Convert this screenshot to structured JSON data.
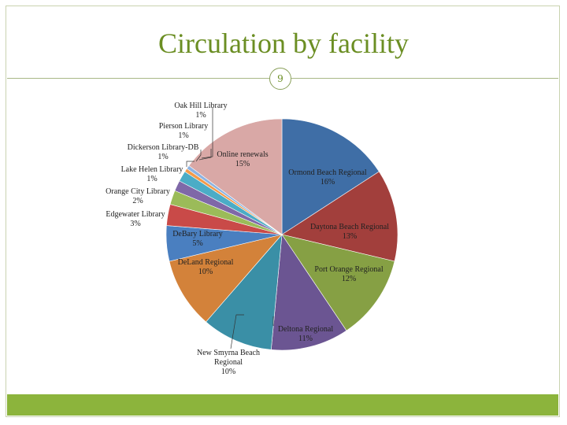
{
  "slide": {
    "title": "Circulation by facility",
    "page_number": "9"
  },
  "colors": {
    "title": "#6b8e23",
    "footer": "#8cb43c"
  },
  "chart_data": {
    "type": "pie",
    "title": "",
    "slices": [
      {
        "name": "Ormond Beach Regional",
        "pct_label": "16%",
        "value": 16,
        "color": "#3f6ea6"
      },
      {
        "name": "Daytona Beach Regional",
        "pct_label": "13%",
        "value": 13,
        "color": "#a23f3c"
      },
      {
        "name": "Port Orange Regional",
        "pct_label": "12%",
        "value": 12,
        "color": "#86a044"
      },
      {
        "name": "Deltona Regional",
        "pct_label": "11%",
        "value": 11,
        "color": "#6b5592"
      },
      {
        "name": "New Smyrna Beach Regional",
        "pct_label": "10%",
        "value": 10,
        "color": "#3a8fa6"
      },
      {
        "name": "DeLand Regional",
        "pct_label": "10%",
        "value": 10,
        "color": "#d3823a"
      },
      {
        "name": "DeBary Library",
        "pct_label": "5%",
        "value": 5,
        "color": "#4a7fc0"
      },
      {
        "name": "Edgewater Library",
        "pct_label": "3%",
        "value": 3,
        "color": "#c94a48"
      },
      {
        "name": "Orange City Library",
        "pct_label": "2%",
        "value": 2,
        "color": "#9bbb59"
      },
      {
        "name": "Lake Helen Library",
        "pct_label": "1%",
        "value": 1.5,
        "color": "#7f68a8"
      },
      {
        "name": "Dickerson Library-DB",
        "pct_label": "1%",
        "value": 1.5,
        "color": "#4bacc6"
      },
      {
        "name": "Pierson Library",
        "pct_label": "1%",
        "value": 0.5,
        "color": "#f39a4a"
      },
      {
        "name": "Oak Hill Library",
        "pct_label": "1%",
        "value": 0.5,
        "color": "#8db3e2"
      },
      {
        "name": "Online renewals",
        "pct_label": "15%",
        "value": 15,
        "color": "#d9a8a6"
      }
    ]
  }
}
